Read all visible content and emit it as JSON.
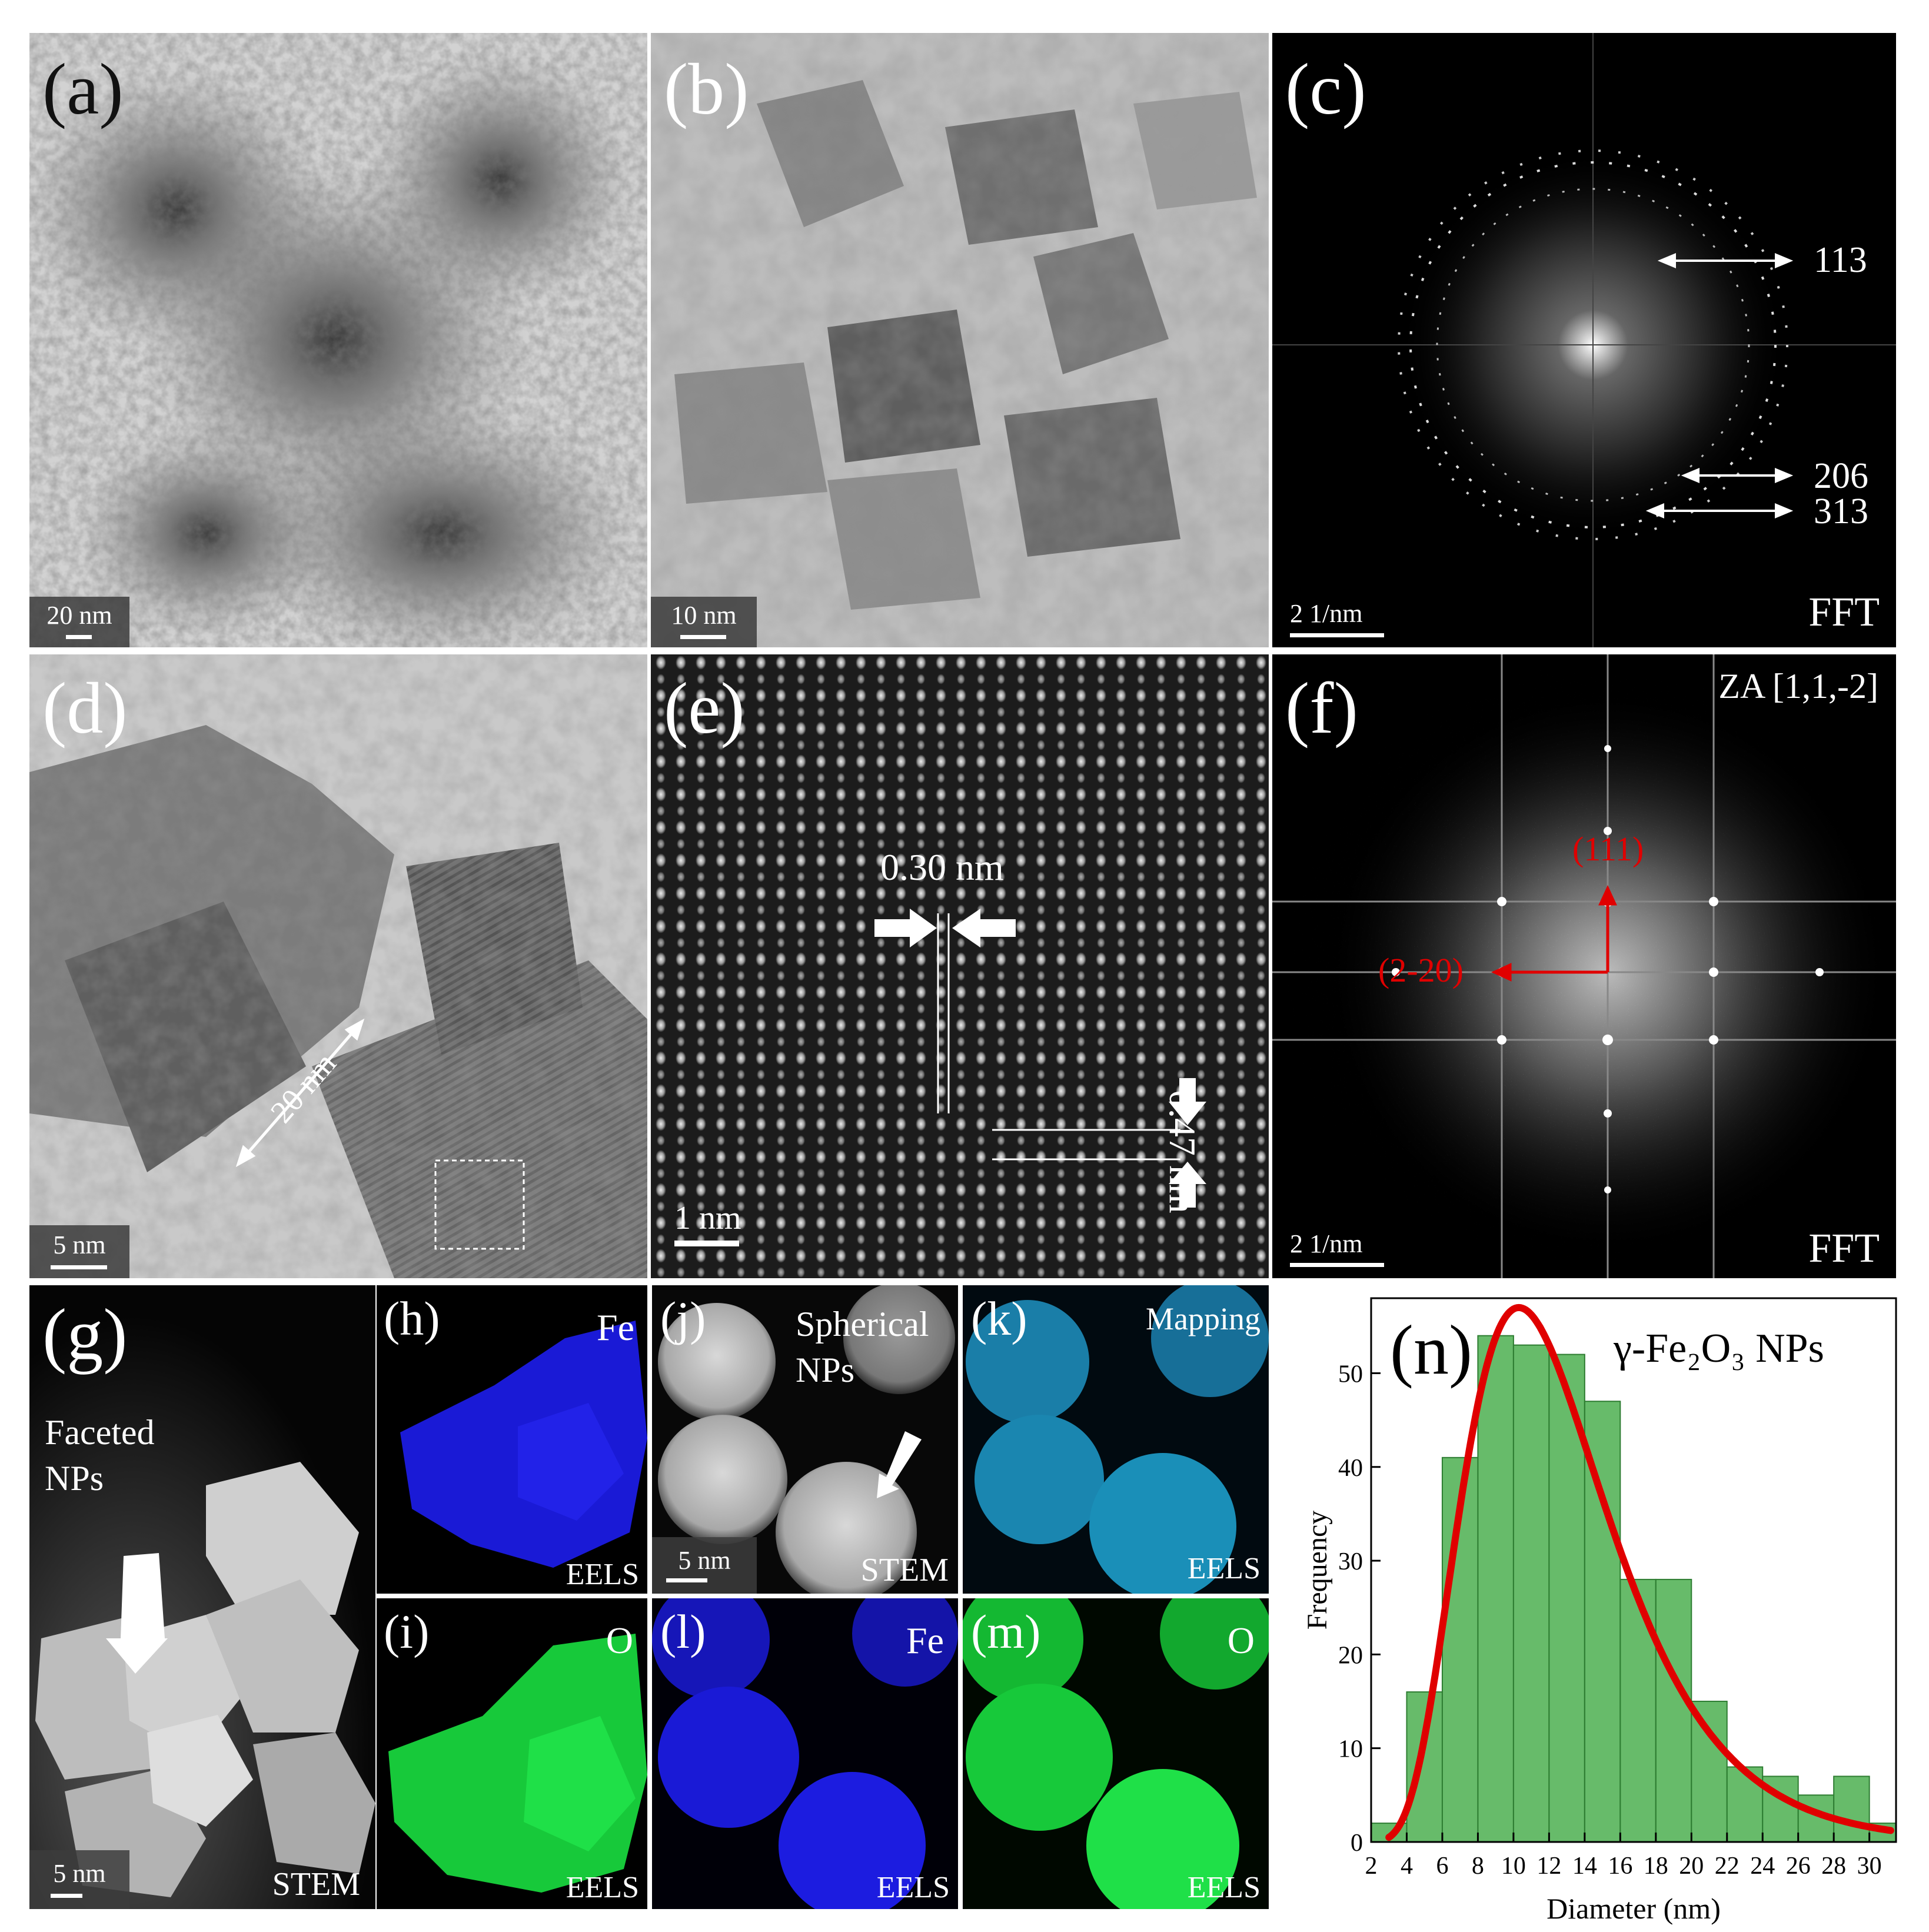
{
  "panels": {
    "a": {
      "label": "(a)",
      "scale": "20 nm"
    },
    "b": {
      "label": "(b)",
      "scale": "10 nm"
    },
    "c": {
      "label": "(c)",
      "scale": "2 1/nm",
      "tag": "FFT",
      "rings": [
        "113",
        "206",
        "313"
      ]
    },
    "d": {
      "label": "(d)",
      "scale": "5 nm",
      "measure": "20 nm"
    },
    "e": {
      "label": "(e)",
      "scale": "1 nm",
      "spacing1": "0.30 nm",
      "spacing2": "0.47 nm"
    },
    "f": {
      "label": "(f)",
      "scale": "2 1/nm",
      "tag": "FFT",
      "zone": "ZA [1,1,-2]",
      "spot1": "(111)",
      "spot2": "(2-20)"
    },
    "g": {
      "label": "(g)",
      "scale": "5 nm",
      "tag": "STEM",
      "note_line1": "Faceted",
      "note_line2": "NPs"
    },
    "h": {
      "label": "(h)",
      "element": "Fe",
      "tag": "EELS",
      "color": "#1a1ad6"
    },
    "i": {
      "label": "(i)",
      "element": "O",
      "tag": "EELS",
      "color": "#17c93a"
    },
    "j": {
      "label": "(j)",
      "scale": "5 nm",
      "tag": "STEM",
      "note_line1": "Spherical",
      "note_line2": "NPs"
    },
    "k": {
      "label": "(k)",
      "element": "Mapping",
      "tag": "EELS",
      "color": "#1a8fb8"
    },
    "l": {
      "label": "(l)",
      "element": "Fe",
      "tag": "EELS",
      "color": "#1a1ad6"
    },
    "m": {
      "label": "(m)",
      "element": "O",
      "tag": "EELS",
      "color": "#17c93a"
    },
    "n": {
      "label": "(n)"
    }
  },
  "chart_data": {
    "type": "bar",
    "title": "γ-Fe₂O₃ NPs",
    "xlabel": "Diameter (nm)",
    "ylabel": "Frequency",
    "x_ticks": [
      "2",
      "4",
      "6",
      "8",
      "10",
      "12",
      "14",
      "16",
      "18",
      "20",
      "22",
      "24",
      "26",
      "28",
      "30"
    ],
    "y_ticks": [
      "0",
      "10",
      "20",
      "30",
      "40",
      "50"
    ],
    "xlim": [
      2,
      31.5
    ],
    "ylim": [
      0,
      58
    ],
    "bin_width": 2,
    "bin_centers": [
      3,
      5,
      7,
      9,
      11,
      13,
      15,
      17,
      19,
      21,
      23,
      25,
      27,
      29,
      31
    ],
    "values": [
      2,
      16,
      41,
      54,
      53,
      52,
      47,
      28,
      28,
      15,
      8,
      7,
      5,
      7,
      2
    ],
    "bar_color": "#4caf50",
    "fit": {
      "type": "lognormal",
      "peak_x": 10.3,
      "peak_y": 57,
      "color": "#e00000"
    },
    "grid": false
  }
}
